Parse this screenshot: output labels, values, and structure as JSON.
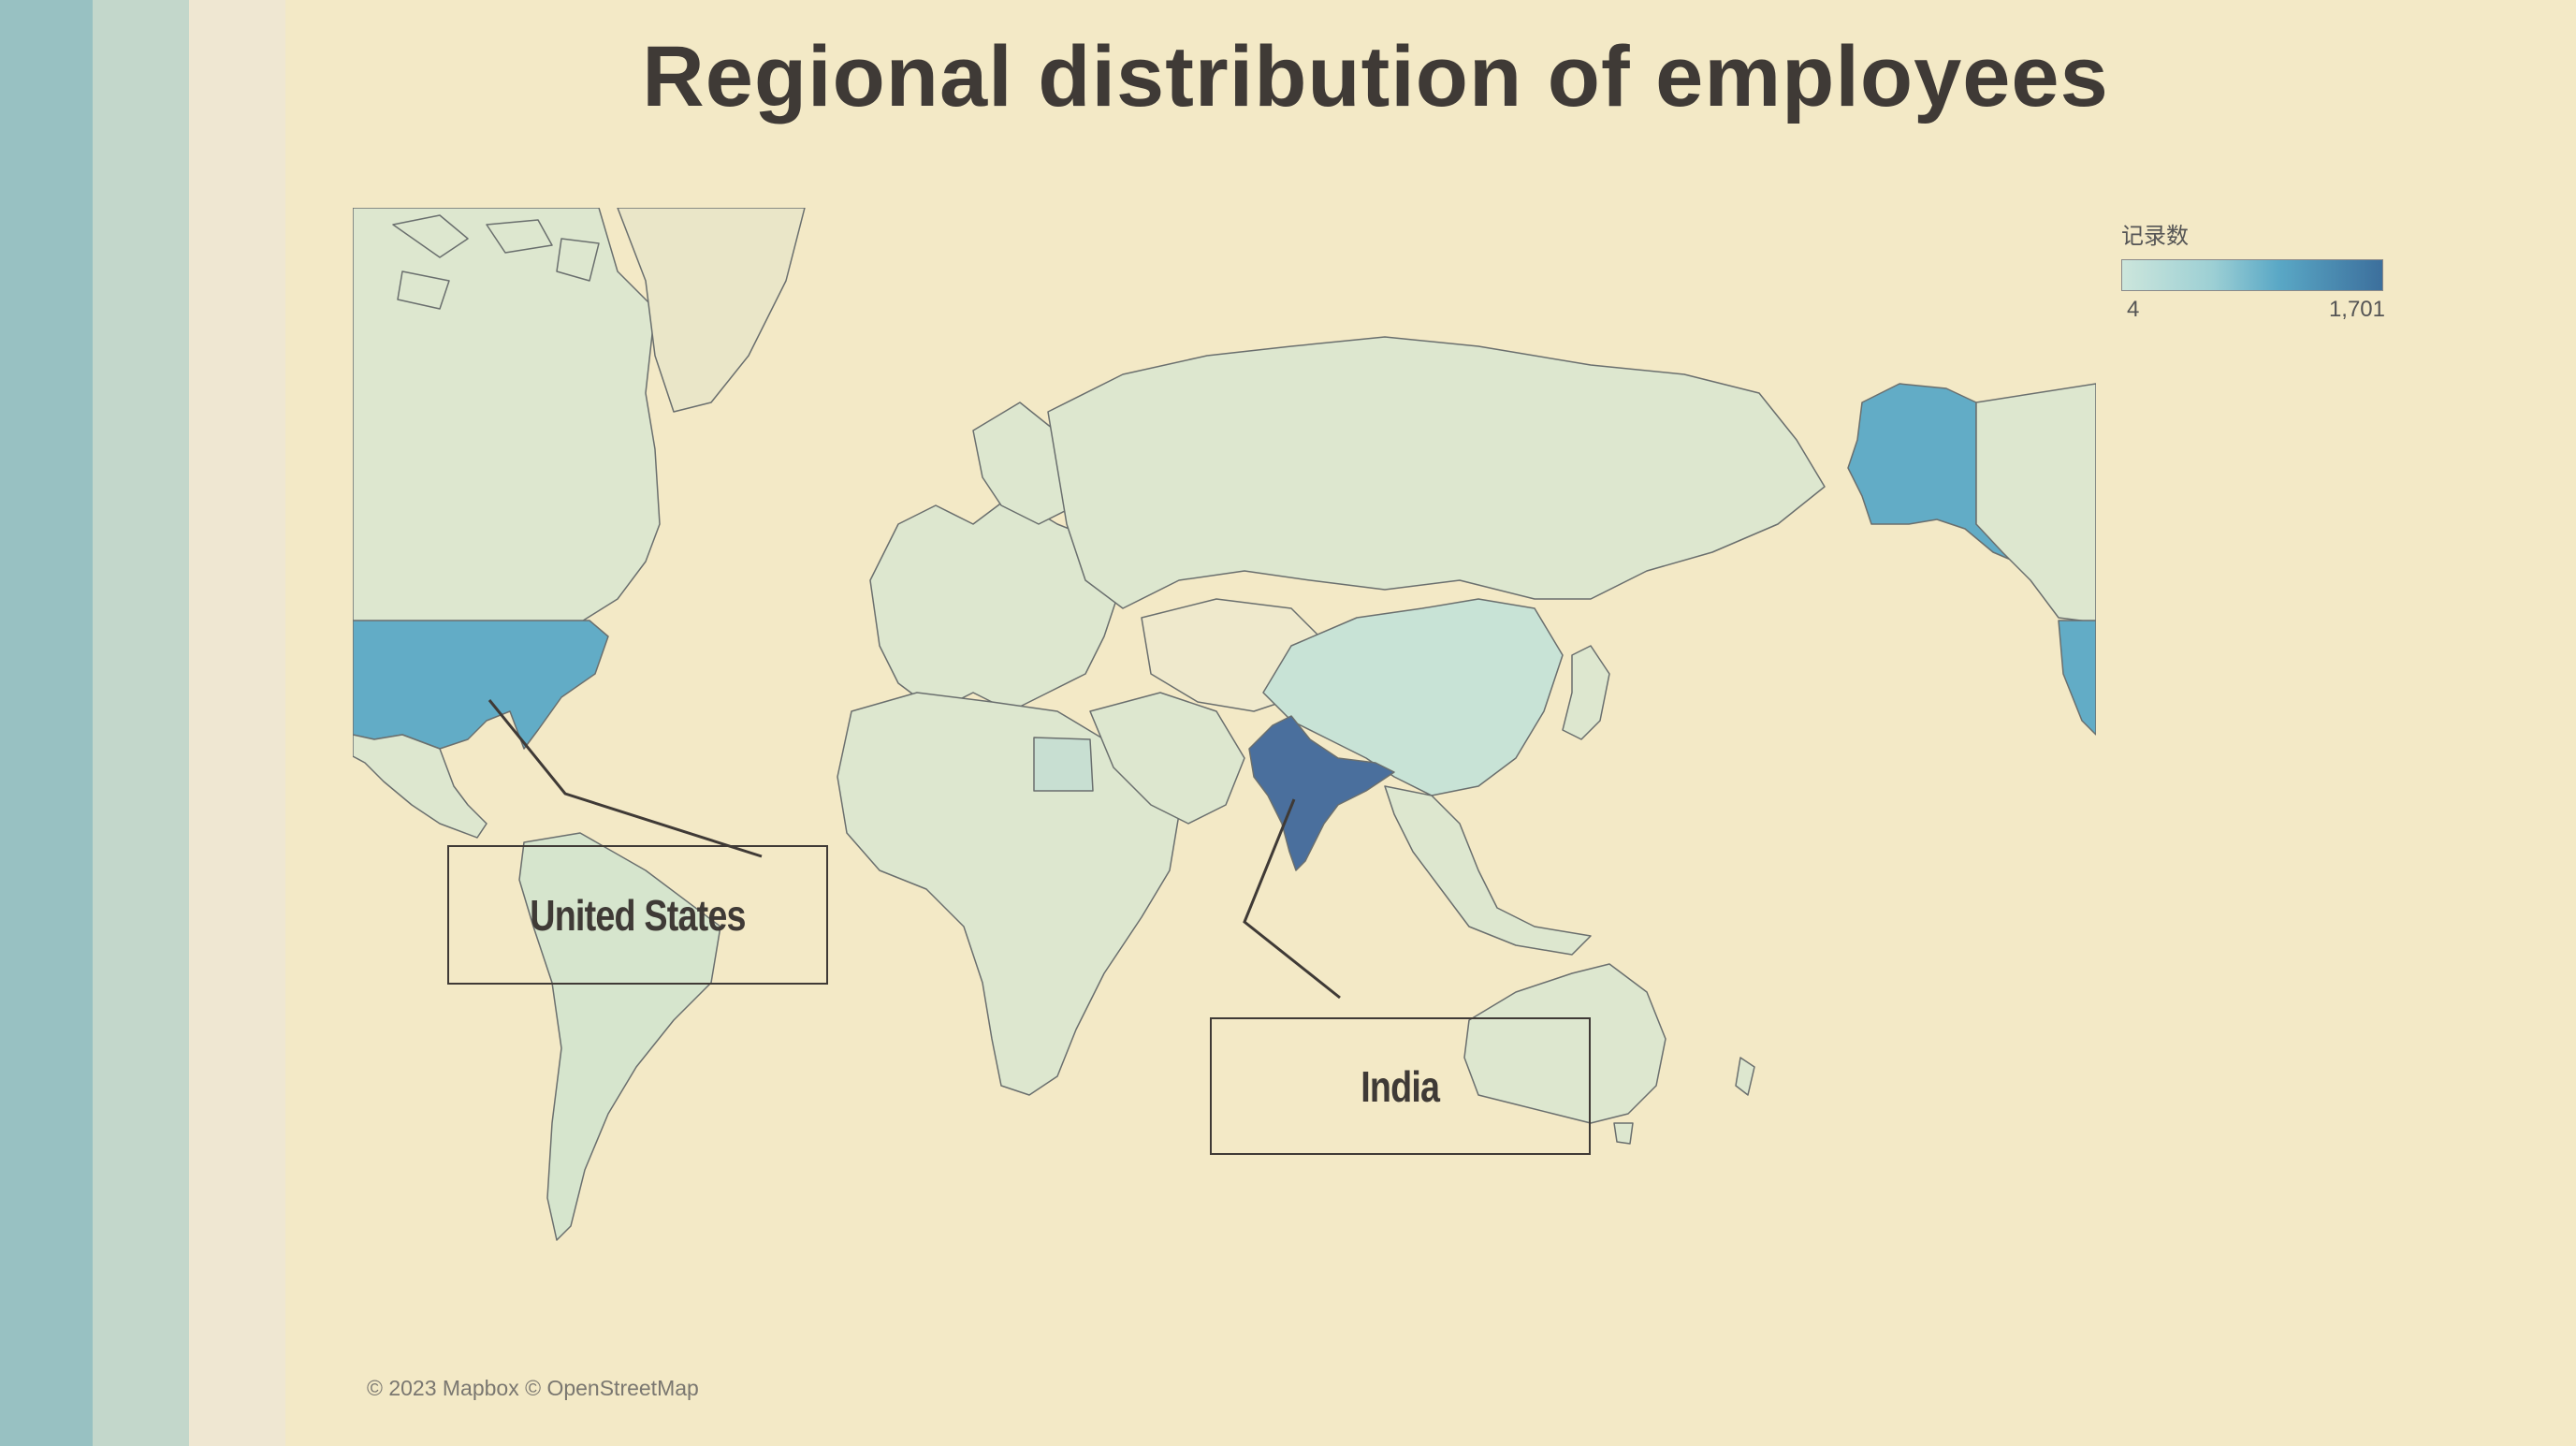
{
  "title": "Regional distribution of employees",
  "legend": {
    "title": "记录数",
    "min_label": "4",
    "max_label": "1,701",
    "color_low": "#cce6dc",
    "color_high": "#3c6f9c"
  },
  "callouts": {
    "united_states": "United States",
    "india": "India"
  },
  "attribution": "© 2023 Mapbox © OpenStreetMap",
  "colors": {
    "background": "#f3e9c6",
    "highlight_us": "#62acc6",
    "highlight_india": "#4a6f9d",
    "land_light": "#dde7cf",
    "text_dark": "#3f3a36"
  }
}
